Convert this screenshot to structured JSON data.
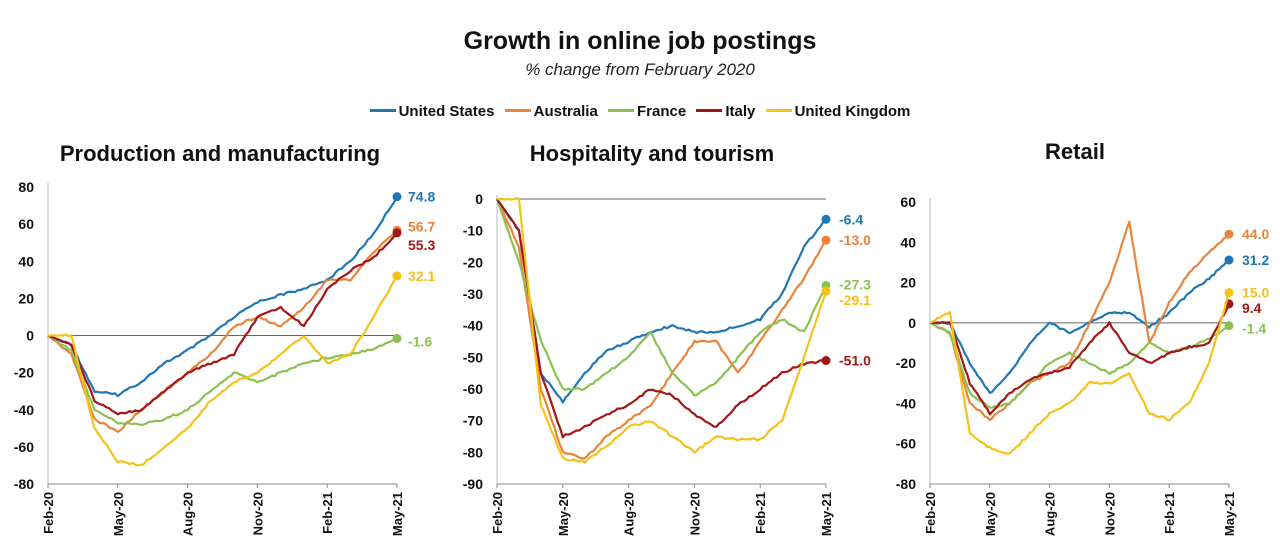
{
  "header": {
    "title": "Growth in online job postings",
    "subtitle": "% change from February 2020"
  },
  "legend": [
    {
      "name": "United States",
      "color": "#1f77b4"
    },
    {
      "name": "Australia",
      "color": "#e8843c"
    },
    {
      "name": "France",
      "color": "#8cc152"
    },
    {
      "name": "Italy",
      "color": "#a31616"
    },
    {
      "name": "United Kingdom",
      "color": "#f5c218"
    }
  ],
  "chart_data": [
    {
      "type": "line",
      "title": "Production and manufacturing",
      "xlabel": "",
      "ylabel": "",
      "ylim": [
        -80,
        80
      ],
      "yticks": [
        -80,
        -60,
        -40,
        -20,
        0,
        20,
        40,
        60,
        80
      ],
      "xlim": [
        "2020-02",
        "2021-05"
      ],
      "xticks": [
        "Feb-20",
        "May-20",
        "Aug-20",
        "Nov-20",
        "Feb-21",
        "May-21"
      ],
      "grid": false,
      "x": [
        "2020-02",
        "2020-03",
        "2020-04",
        "2020-05",
        "2020-06",
        "2020-07",
        "2020-08",
        "2020-09",
        "2020-10",
        "2020-11",
        "2020-12",
        "2021-01",
        "2021-02",
        "2021-03",
        "2021-04",
        "2021-05"
      ],
      "series": [
        {
          "name": "United States",
          "color": "#1f77b4",
          "end_label": "74.8",
          "values": [
            0,
            -5,
            -30,
            -32,
            -25,
            -15,
            -8,
            0,
            10,
            18,
            22,
            25,
            30,
            40,
            55,
            74.8
          ]
        },
        {
          "name": "Australia",
          "color": "#e8843c",
          "end_label": "56.7",
          "values": [
            0,
            -10,
            -45,
            -52,
            -40,
            -30,
            -20,
            -10,
            5,
            10,
            5,
            15,
            30,
            30,
            45,
            56.7
          ]
        },
        {
          "name": "France",
          "color": "#8cc152",
          "end_label": "-1.6",
          "values": [
            0,
            -8,
            -40,
            -47,
            -48,
            -45,
            -40,
            -30,
            -20,
            -25,
            -20,
            -15,
            -12,
            -10,
            -7,
            -1.6
          ]
        },
        {
          "name": "Italy",
          "color": "#a31616",
          "end_label": "55.3",
          "values": [
            0,
            -5,
            -35,
            -42,
            -40,
            -30,
            -20,
            -15,
            -10,
            10,
            15,
            5,
            25,
            35,
            42,
            55.3
          ]
        },
        {
          "name": "United Kingdom",
          "color": "#f5c218",
          "end_label": "32.1",
          "values": [
            0,
            0,
            -50,
            -68,
            -70,
            -60,
            -50,
            -35,
            -25,
            -20,
            -10,
            0,
            -15,
            -10,
            10,
            32.1
          ]
        }
      ]
    },
    {
      "type": "line",
      "title": "Hospitality and tourism",
      "xlabel": "",
      "ylabel": "",
      "ylim": [
        -90,
        0
      ],
      "yticks": [
        -90,
        -80,
        -70,
        -60,
        -50,
        -40,
        -30,
        -20,
        -10,
        0
      ],
      "xlim": [
        "2020-02",
        "2021-05"
      ],
      "xticks": [
        "Feb-20",
        "May-20",
        "Aug-20",
        "Nov-20",
        "Feb-21",
        "May-21"
      ],
      "grid": false,
      "x": [
        "2020-02",
        "2020-03",
        "2020-04",
        "2020-05",
        "2020-06",
        "2020-07",
        "2020-08",
        "2020-09",
        "2020-10",
        "2020-11",
        "2020-12",
        "2021-01",
        "2021-02",
        "2021-03",
        "2021-04",
        "2021-05"
      ],
      "series": [
        {
          "name": "United States",
          "color": "#1f77b4",
          "end_label": "-6.4",
          "values": [
            0,
            -10,
            -55,
            -64,
            -55,
            -48,
            -45,
            -42,
            -40,
            -42,
            -42,
            -40,
            -38,
            -30,
            -15,
            -6.4
          ]
        },
        {
          "name": "Australia",
          "color": "#e8843c",
          "end_label": "-13.0",
          "values": [
            0,
            -15,
            -60,
            -80,
            -82,
            -75,
            -70,
            -65,
            -55,
            -45,
            -45,
            -55,
            -45,
            -35,
            -25,
            -13.0
          ]
        },
        {
          "name": "France",
          "color": "#8cc152",
          "end_label": "-27.3",
          "values": [
            0,
            -20,
            -45,
            -60,
            -60,
            -55,
            -50,
            -42,
            -55,
            -62,
            -58,
            -50,
            -42,
            -38,
            -42,
            -27.3
          ]
        },
        {
          "name": "Italy",
          "color": "#a31616",
          "end_label": "-51.0",
          "values": [
            0,
            -10,
            -55,
            -75,
            -72,
            -68,
            -65,
            -60,
            -62,
            -68,
            -72,
            -65,
            -60,
            -55,
            -52,
            -51.0
          ]
        },
        {
          "name": "United Kingdom",
          "color": "#f5c218",
          "end_label": "-29.1",
          "values": [
            0,
            0,
            -65,
            -82,
            -83,
            -78,
            -72,
            -70,
            -75,
            -80,
            -75,
            -76,
            -76,
            -70,
            -50,
            -29.1
          ]
        }
      ]
    },
    {
      "type": "line",
      "title": "Retail",
      "xlabel": "",
      "ylabel": "",
      "ylim": [
        -80,
        60
      ],
      "yticks": [
        -80,
        -60,
        -40,
        -20,
        0,
        20,
        40,
        60
      ],
      "xlim": [
        "2020-02",
        "2021-05"
      ],
      "xticks": [
        "Feb-20",
        "May-20",
        "Aug-20",
        "Nov-20",
        "Feb-21",
        "May-21"
      ],
      "grid": false,
      "x": [
        "2020-02",
        "2020-03",
        "2020-04",
        "2020-05",
        "2020-06",
        "2020-07",
        "2020-08",
        "2020-09",
        "2020-10",
        "2020-11",
        "2020-12",
        "2021-01",
        "2021-02",
        "2021-03",
        "2021-04",
        "2021-05"
      ],
      "series": [
        {
          "name": "United States",
          "color": "#1f77b4",
          "end_label": "31.2",
          "values": [
            0,
            0,
            -20,
            -35,
            -25,
            -10,
            0,
            -5,
            0,
            5,
            5,
            -2,
            5,
            15,
            22,
            31.2
          ]
        },
        {
          "name": "Australia",
          "color": "#e8843c",
          "end_label": "44.0",
          "values": [
            0,
            -5,
            -40,
            -48,
            -40,
            -30,
            -25,
            -20,
            0,
            20,
            50,
            -10,
            10,
            25,
            35,
            44.0
          ]
        },
        {
          "name": "France",
          "color": "#8cc152",
          "end_label": "-1.4",
          "values": [
            0,
            -5,
            -35,
            -42,
            -40,
            -30,
            -20,
            -15,
            -20,
            -25,
            -20,
            -10,
            -15,
            -12,
            -8,
            -1.4
          ]
        },
        {
          "name": "Italy",
          "color": "#a31616",
          "end_label": "9.4",
          "values": [
            0,
            0,
            -30,
            -45,
            -35,
            -28,
            -25,
            -22,
            -10,
            0,
            -15,
            -20,
            -15,
            -12,
            -10,
            9.4
          ]
        },
        {
          "name": "United Kingdom",
          "color": "#f5c218",
          "end_label": "15.0",
          "values": [
            0,
            5,
            -55,
            -62,
            -65,
            -55,
            -45,
            -40,
            -30,
            -30,
            -25,
            -45,
            -48,
            -40,
            -20,
            15.0
          ]
        }
      ]
    }
  ]
}
